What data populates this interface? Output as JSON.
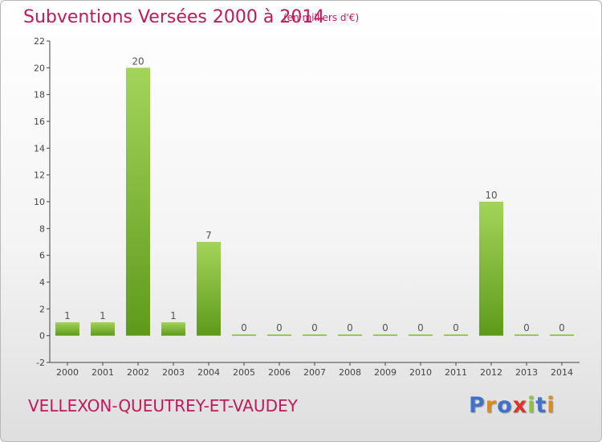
{
  "header": {
    "title": "Subventions Versées 2000 à 2014",
    "unit": "(en milliers d'€)"
  },
  "footer": {
    "commune": "VELLEXON-QUEUTREY-ET-VAUDEY",
    "logo": [
      "P",
      "r",
      "o",
      "x",
      "i",
      "t",
      "i"
    ],
    "logo_colors": [
      "#3f73c8",
      "#e08a16",
      "#3f73c8",
      "#e03030",
      "#8ac43f",
      "#3f73c8",
      "#e08a16"
    ]
  },
  "colors": {
    "bar_light": "#a3d45a",
    "bar_dark": "#5e9a1a",
    "title": "#c2185b"
  },
  "chart_data": {
    "type": "bar",
    "categories": [
      "2000",
      "2001",
      "2002",
      "2003",
      "2004",
      "2005",
      "2006",
      "2007",
      "2008",
      "2009",
      "2010",
      "2011",
      "2012",
      "2013",
      "2014"
    ],
    "values": [
      1,
      1,
      20,
      1,
      7,
      0,
      0,
      0,
      0,
      0,
      0,
      0,
      10,
      0,
      0
    ],
    "data_labels": [
      "1",
      "1",
      "20",
      "1",
      "7",
      "0",
      "0",
      "0",
      "0",
      "0",
      "0",
      "0",
      "10",
      "0",
      "0"
    ],
    "y_ticks": [
      "-2",
      "0",
      "2",
      "4",
      "6",
      "8",
      "10",
      "12",
      "14",
      "16",
      "18",
      "20",
      "22"
    ],
    "ylim": [
      -2,
      22
    ],
    "grid": false,
    "legend": false
  }
}
